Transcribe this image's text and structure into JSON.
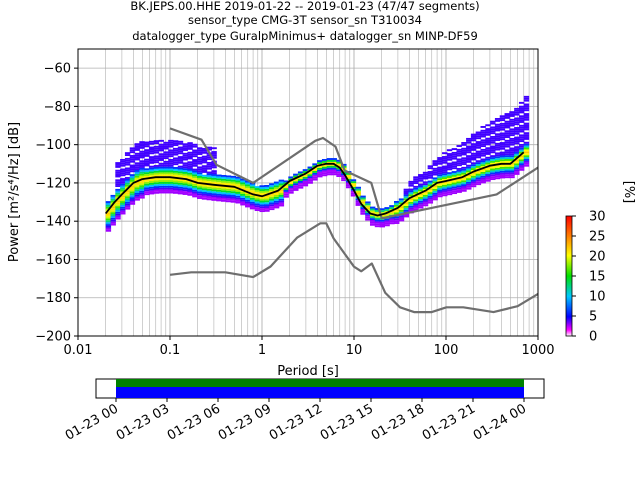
{
  "title_lines": [
    "BK.JEPS.00.HHE   2019-01-22 -- 2019-01-23  (47/47 segments)",
    "sensor_type CMG-3T sensor_sn T310034",
    "datalogger_type GuralpMinimus+ datalogger_sn MINP-DF59"
  ],
  "chart_data": [
    {
      "type": "heatmap",
      "title": "BK.JEPS.00.HHE   2019-01-22 -- 2019-01-23  (47/47 segments)",
      "xlabel": "Period [s]",
      "ylabel": "Power [m²/s⁴/Hz] [dB]",
      "x_scale": "log",
      "xlim": [
        0.01,
        1000
      ],
      "ylim": [
        -200,
        -50
      ],
      "x_tick_labels": [
        "0.01",
        "0.1",
        "1",
        "10",
        "100",
        "1000"
      ],
      "y_ticks": [
        -200,
        -180,
        -160,
        -140,
        -120,
        -100,
        -80,
        -60
      ],
      "grid": true,
      "colorbar": {
        "label": "[%]",
        "range": [
          0,
          30
        ],
        "ticks": [
          0,
          5,
          10,
          15,
          20,
          25,
          30
        ]
      },
      "mode_curve": {
        "x": [
          0.02,
          0.025,
          0.03,
          0.04,
          0.05,
          0.07,
          0.1,
          0.15,
          0.2,
          0.3,
          0.5,
          0.8,
          1.0,
          1.5,
          2.0,
          3.0,
          4.0,
          5.0,
          6.0,
          7.0,
          8.0,
          10.0,
          12.0,
          15.0,
          18.0,
          22.0,
          30.0,
          40.0,
          60.0,
          80.0,
          100.0,
          150.0,
          200.0,
          300.0,
          400.0,
          500.0,
          700.0
        ],
        "y": [
          -136,
          -130,
          -126,
          -120,
          -118,
          -117,
          -117,
          -118,
          -120,
          -121,
          -122,
          -126,
          -127,
          -124,
          -119,
          -115,
          -111,
          -110,
          -110,
          -112,
          -116,
          -124,
          -131,
          -136,
          -137,
          -136,
          -133,
          -128,
          -124,
          -120,
          -119,
          -117,
          -114,
          -111,
          -110,
          -110,
          -104
        ]
      },
      "new_high_noise_model": {
        "x": [
          0.1,
          0.22,
          0.32,
          0.8,
          3.8,
          4.6,
          6.3,
          7.9,
          15.4,
          20.0,
          354.8,
          1000
        ],
        "y": [
          -91.5,
          -97.4,
          -110.5,
          -120.0,
          -98.0,
          -96.5,
          -101.0,
          -113.5,
          -120.0,
          -138.5,
          -126.0,
          -112.0
        ]
      },
      "new_low_noise_model": {
        "x": [
          0.1,
          0.17,
          0.4,
          0.8,
          1.24,
          2.4,
          4.3,
          5.0,
          6.0,
          10.0,
          12.0,
          15.6,
          21.9,
          31.6,
          45.0,
          70.0,
          101.0,
          154.0,
          328.0,
          600.0,
          1000
        ],
        "y": [
          -168.0,
          -166.7,
          -166.7,
          -169.2,
          -163.7,
          -148.6,
          -141.1,
          -141.1,
          -149.0,
          -163.8,
          -166.2,
          -162.1,
          -177.5,
          -185.0,
          -187.5,
          -187.5,
          -185.0,
          -185.0,
          -187.5,
          -184.4,
          -178.0
        ]
      }
    },
    {
      "type": "bar",
      "description_of_content": "data coverage timeline",
      "x_tick_labels": [
        "01-23 00",
        "01-23 03",
        "01-23 06",
        "01-23 09",
        "01-23 12",
        "01-23 15",
        "01-23 18",
        "01-23 21",
        "01-24 00"
      ],
      "series": [
        {
          "color": "#008000",
          "coverage": [
            0,
            1
          ]
        },
        {
          "color": "#0000ff",
          "coverage": [
            0,
            1
          ]
        }
      ]
    }
  ]
}
